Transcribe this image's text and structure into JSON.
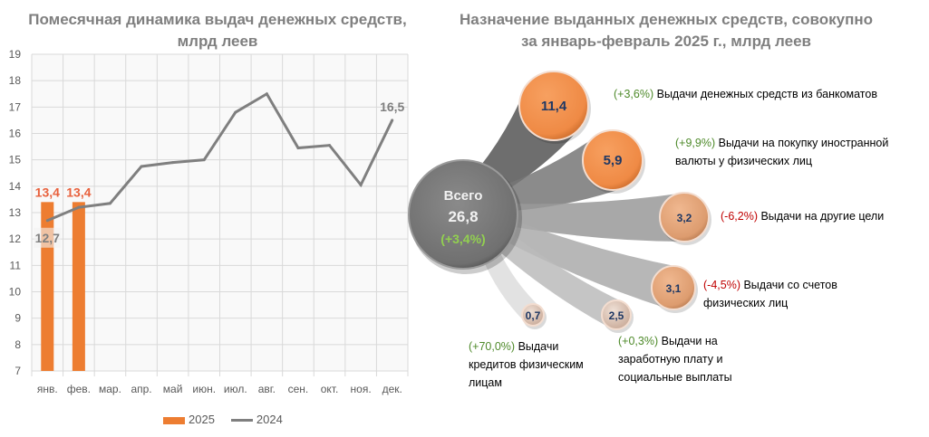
{
  "chart_data": [
    {
      "type": "bar+line",
      "title": "Помесячная динамика выдач денежных средств, млрд леев",
      "categories": [
        "янв.",
        "фев.",
        "мар.",
        "апр.",
        "май",
        "июн.",
        "июл.",
        "авг.",
        "сен.",
        "окт.",
        "ноя.",
        "дек."
      ],
      "ylim": [
        7,
        19
      ],
      "yticks": [
        7,
        8,
        9,
        10,
        11,
        12,
        13,
        14,
        15,
        16,
        17,
        18,
        19
      ],
      "grid": true,
      "legend_position": "bottom",
      "series": [
        {
          "name": "2025",
          "type": "bar",
          "color": "#ed7d31",
          "values": [
            13.4,
            13.4,
            null,
            null,
            null,
            null,
            null,
            null,
            null,
            null,
            null,
            null
          ],
          "labels": [
            "13,4",
            "13,4"
          ]
        },
        {
          "name": "2024",
          "type": "line",
          "color": "#7f7f7f",
          "values": [
            12.7,
            13.2,
            13.35,
            14.75,
            14.9,
            15.0,
            16.8,
            17.5,
            15.45,
            15.55,
            14.05,
            16.5
          ],
          "labels": {
            "first": "12,7",
            "last": "16,5"
          }
        }
      ]
    },
    {
      "type": "bubble",
      "title": "Назначение выданных денежных средств, совокупно за январь-февраль 2025 г., млрд леев",
      "total": {
        "label": "Всего",
        "value": "26,8",
        "change": "(+3,4%)"
      },
      "items": [
        {
          "value": 11.4,
          "value_label": "11,4",
          "change": "(+3,6%)",
          "sign": "pos",
          "label": "Выдачи денежных средств из банкоматов"
        },
        {
          "value": 5.9,
          "value_label": "5,9",
          "change": "(+9,9%)",
          "sign": "pos",
          "label": "Выдачи на покупку иностранной валюты у физических лиц"
        },
        {
          "value": 3.2,
          "value_label": "3,2",
          "change": "(-6,2%)",
          "sign": "neg",
          "label": "Выдачи на другие цели"
        },
        {
          "value": 3.1,
          "value_label": "3,1",
          "change": "(-4,5%)",
          "sign": "neg",
          "label": "Выдачи со счетов физических лиц"
        },
        {
          "value": 2.5,
          "value_label": "2,5",
          "change": "(+0,3%)",
          "sign": "pos",
          "label": "Выдачи на заработную плату и социальные выплаты"
        },
        {
          "value": 0.7,
          "value_label": "0,7",
          "change": "(+70,0%)",
          "sign": "pos",
          "label": "Выдачи кредитов физическим лицам"
        }
      ]
    }
  ]
}
